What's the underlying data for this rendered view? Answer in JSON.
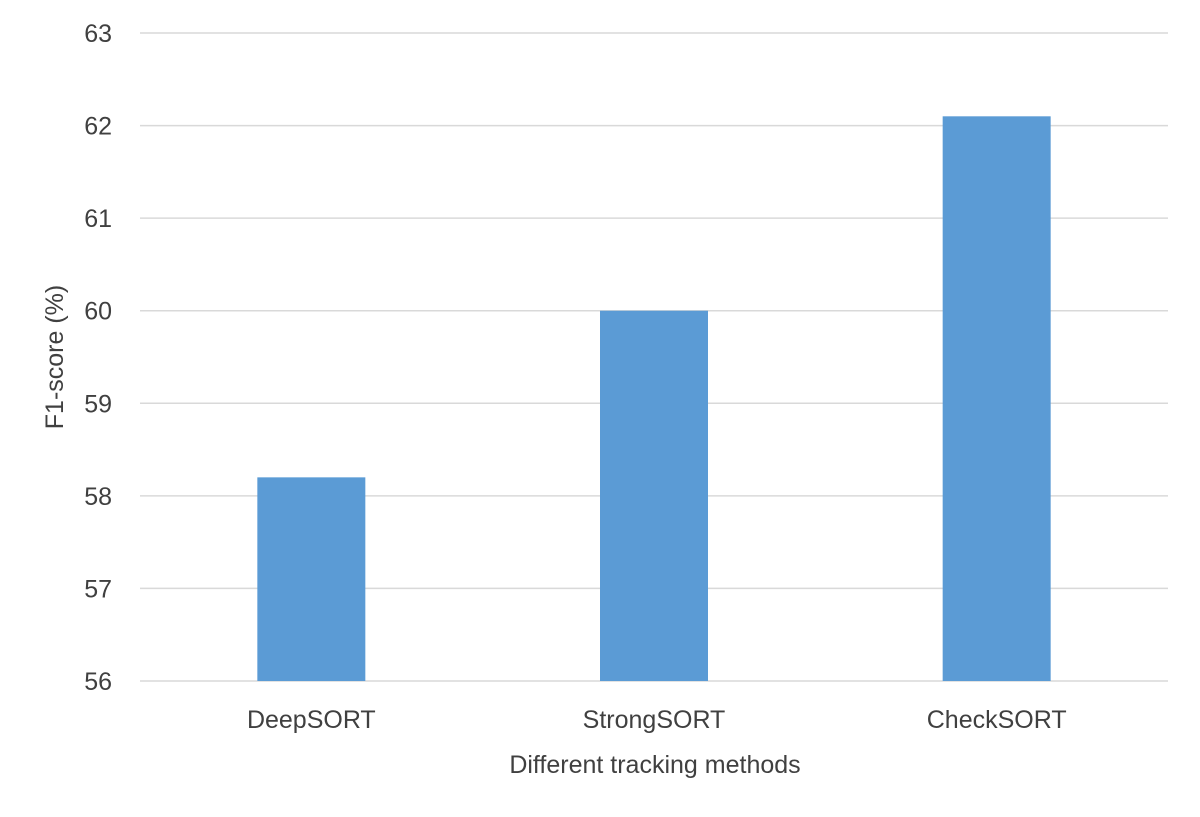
{
  "chart_data": {
    "type": "bar",
    "title": "",
    "xlabel": "Different tracking methods",
    "ylabel": "F1-score (%)",
    "categories": [
      "DeepSORT",
      "StrongSORT",
      "CheckSORT"
    ],
    "series": [
      {
        "values": [
          58.2,
          60.0,
          62.1
        ],
        "color": "#5b9bd5"
      }
    ],
    "ylim": [
      56,
      63
    ],
    "yticks": [
      56,
      57,
      58,
      59,
      60,
      61,
      62,
      63
    ],
    "grid": true,
    "legend": "none"
  },
  "colors": {
    "bar": "#5b9bd5",
    "grid": "#d9d9d9",
    "text": "#404040"
  }
}
